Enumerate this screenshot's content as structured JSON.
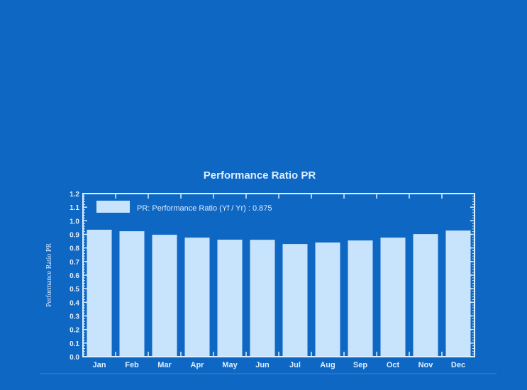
{
  "colors": {
    "background": "#0F67C4",
    "bar": "#C8E4FC",
    "axis": "#DCEEFF"
  },
  "chart_data": {
    "type": "bar",
    "title": "Performance Ratio PR",
    "ylabel": "Performance Ratio PR",
    "xlabel": "",
    "ylim": [
      0,
      1.2
    ],
    "yticks": [
      "0.0",
      "0.1",
      "0.2",
      "0.3",
      "0.4",
      "0.5",
      "0.6",
      "0.7",
      "0.8",
      "0.9",
      "1.0",
      "1.1",
      "1.2"
    ],
    "categories": [
      "Jan",
      "Feb",
      "Mar",
      "Apr",
      "May",
      "Jun",
      "Jul",
      "Aug",
      "Sep",
      "Oct",
      "Nov",
      "Dec"
    ],
    "series": [
      {
        "name": "PR: Performance Ratio (Yf / Yr) :  0.875",
        "values": [
          0.934,
          0.923,
          0.897,
          0.876,
          0.861,
          0.86,
          0.829,
          0.84,
          0.855,
          0.876,
          0.902,
          0.928
        ]
      }
    ],
    "legend": "top-left",
    "grid": false
  }
}
